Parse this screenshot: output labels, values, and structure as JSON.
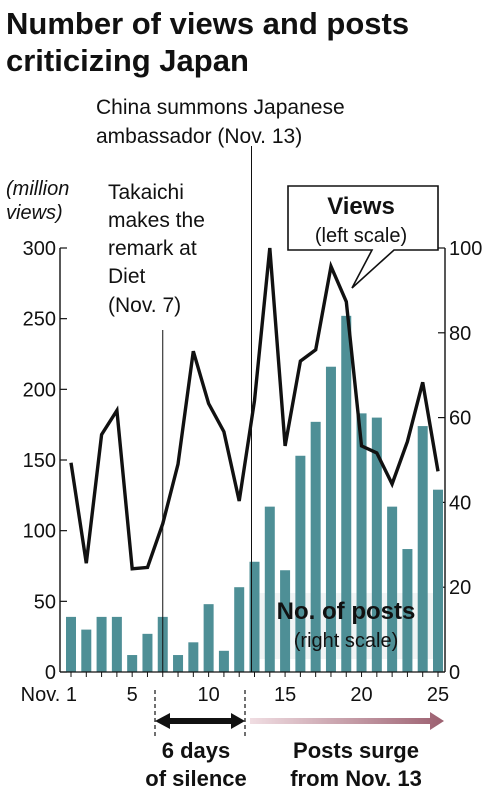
{
  "title_line1": "Number of views and posts",
  "title_line2": "criticizing Japan",
  "left_unit_line1": "(million",
  "left_unit_line2": "views)",
  "annotations": {
    "china_line1": "China summons Japanese",
    "china_line2": "ambassador (Nov. 13)",
    "takaichi_line1": "Takaichi",
    "takaichi_line2": "makes the",
    "takaichi_line3": "remark at",
    "takaichi_line4": "Diet",
    "takaichi_line5": "(Nov. 7)",
    "views_title": "Views",
    "views_sub": "(left scale)",
    "posts_title": "No. of posts",
    "posts_sub": "(right scale)",
    "silence_line1": "6 days",
    "silence_line2": "of silence",
    "surge_line1": "Posts surge",
    "surge_line2": "from Nov. 13"
  },
  "colors": {
    "bars": "#4e8f96",
    "line": "#111111",
    "surge_arrow": "#9c6070",
    "label_box": "#eef2f3"
  },
  "chart_data": {
    "type": "bar+line",
    "title": "Number of views and posts criticizing Japan",
    "x": [
      1,
      2,
      3,
      4,
      5,
      6,
      7,
      8,
      9,
      10,
      11,
      12,
      13,
      14,
      15,
      16,
      17,
      18,
      19,
      20,
      21,
      22,
      23,
      24,
      25
    ],
    "x_ticks": [
      {
        "x": 1,
        "label": "Nov. 1"
      },
      {
        "x": 5,
        "label": "5"
      },
      {
        "x": 10,
        "label": "10"
      },
      {
        "x": 15,
        "label": "15"
      },
      {
        "x": 20,
        "label": "20"
      },
      {
        "x": 25,
        "label": "25"
      }
    ],
    "y_left": {
      "label": "(million views)",
      "range": [
        0,
        300
      ],
      "ticks": [
        0,
        50,
        100,
        150,
        200,
        250,
        300
      ]
    },
    "y_right": {
      "range": [
        0,
        100
      ],
      "ticks": [
        0,
        20,
        40,
        60,
        80,
        100
      ]
    },
    "series": [
      {
        "name": "No. of posts",
        "axis": "right",
        "kind": "bar",
        "values": [
          13,
          10,
          13,
          13,
          4,
          9,
          13,
          4,
          7,
          16,
          5,
          20,
          26,
          39,
          24,
          51,
          59,
          72,
          84,
          61,
          60,
          39,
          29,
          58,
          43
        ]
      },
      {
        "name": "Views",
        "axis": "left",
        "kind": "line",
        "values": [
          148,
          77,
          168,
          185,
          73,
          74,
          105,
          147,
          227,
          190,
          170,
          121,
          192,
          300,
          160,
          220,
          228,
          287,
          262,
          160,
          155,
          133,
          163,
          205,
          142
        ]
      }
    ],
    "events": [
      {
        "x": 7,
        "label": "Takaichi makes the remark at Diet (Nov. 7)"
      },
      {
        "x": 13,
        "label": "China summons Japanese ambassador (Nov. 13)"
      }
    ],
    "spans": [
      {
        "from": 7,
        "to": 13,
        "label": "6 days of silence"
      },
      {
        "from": 13,
        "to": 25,
        "label": "Posts surge from Nov. 13"
      }
    ]
  }
}
